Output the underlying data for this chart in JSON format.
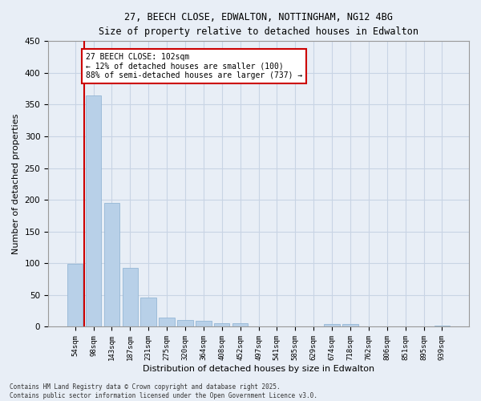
{
  "title1": "27, BEECH CLOSE, EDWALTON, NOTTINGHAM, NG12 4BG",
  "title2": "Size of property relative to detached houses in Edwalton",
  "xlabel": "Distribution of detached houses by size in Edwalton",
  "ylabel": "Number of detached properties",
  "categories": [
    "54sqm",
    "98sqm",
    "143sqm",
    "187sqm",
    "231sqm",
    "275sqm",
    "320sqm",
    "364sqm",
    "408sqm",
    "452sqm",
    "497sqm",
    "541sqm",
    "585sqm",
    "629sqm",
    "674sqm",
    "718sqm",
    "762sqm",
    "806sqm",
    "851sqm",
    "895sqm",
    "939sqm"
  ],
  "values": [
    99,
    365,
    195,
    93,
    46,
    14,
    11,
    10,
    6,
    6,
    0,
    0,
    0,
    0,
    5,
    4,
    0,
    0,
    0,
    0,
    2
  ],
  "bar_color": "#b8d0e8",
  "bar_edgecolor": "#8ab0d0",
  "grid_color": "#c8d4e4",
  "background_color": "#e8eef6",
  "vline_x": 0.5,
  "vline_color": "#cc0000",
  "annotation_text": "27 BEECH CLOSE: 102sqm\n← 12% of detached houses are smaller (100)\n88% of semi-detached houses are larger (737) →",
  "annotation_box_color": "#ffffff",
  "annotation_border_color": "#cc0000",
  "footer": "Contains HM Land Registry data © Crown copyright and database right 2025.\nContains public sector information licensed under the Open Government Licence v3.0.",
  "ylim": [
    0,
    450
  ],
  "yticks": [
    0,
    50,
    100,
    150,
    200,
    250,
    300,
    350,
    400,
    450
  ]
}
